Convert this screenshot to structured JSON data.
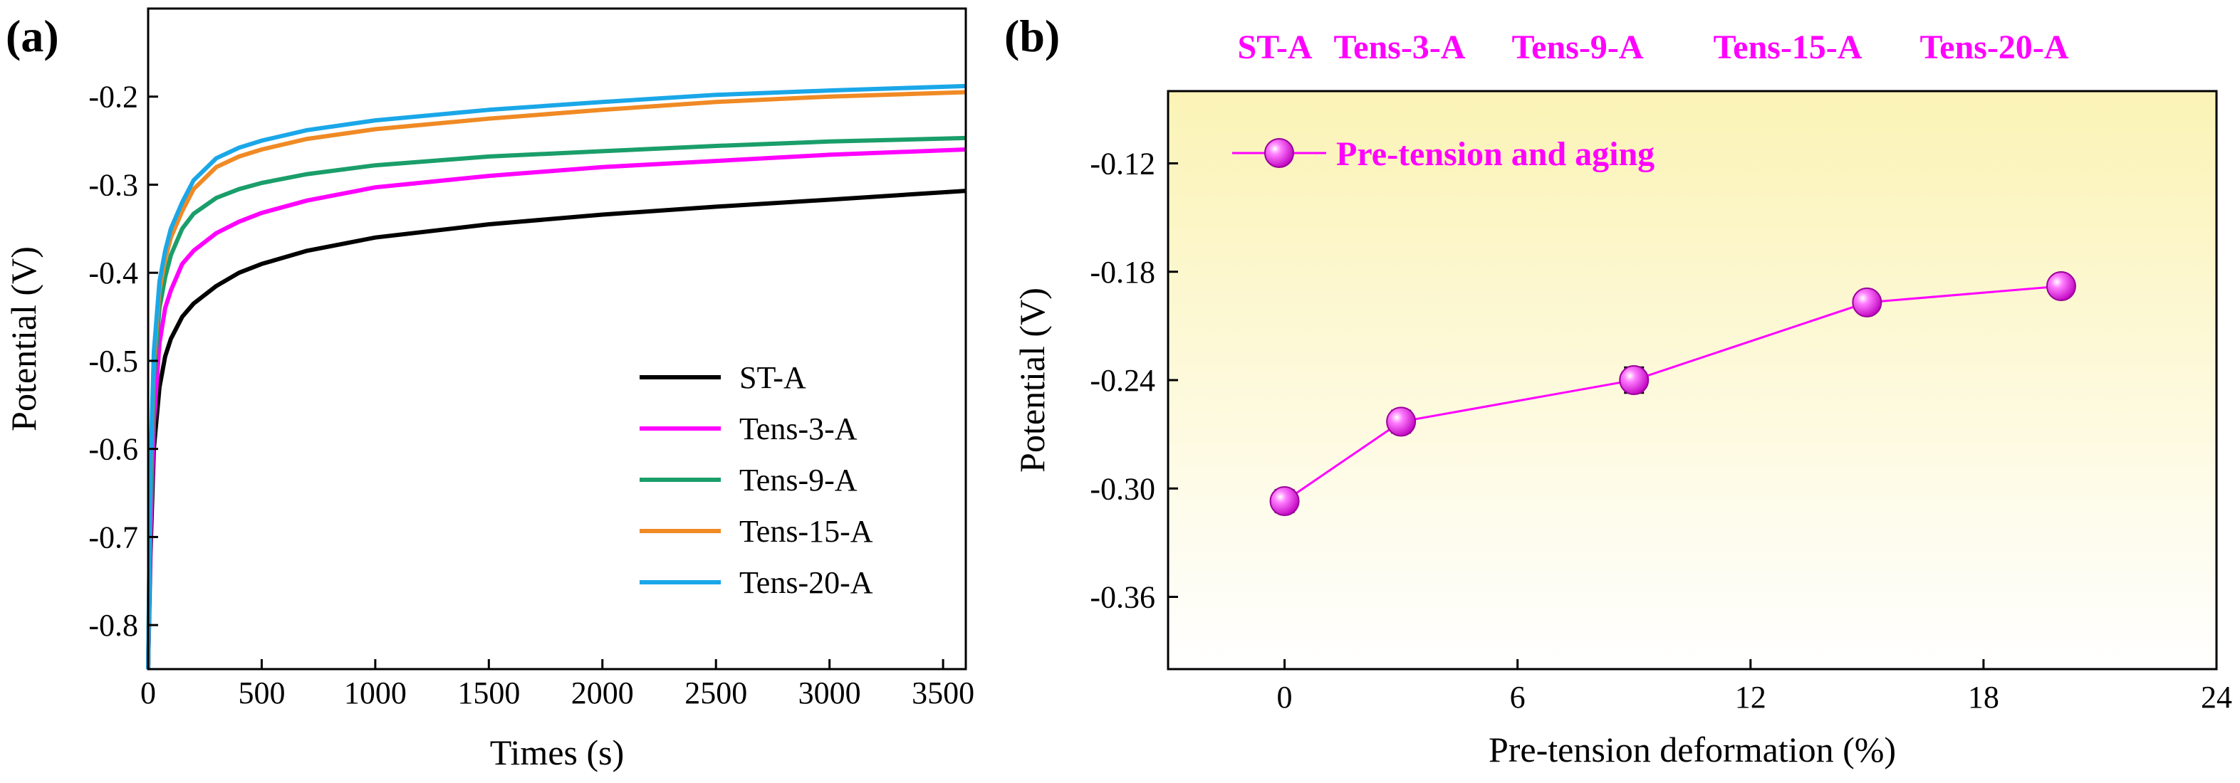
{
  "colors": {
    "st_a": "#000000",
    "tens_3_a": "#ff00ff",
    "tens_9_a": "#1a9e6a",
    "tens_15_a": "#f08a24",
    "tens_20_a": "#1aa7e8",
    "magenta": "#ff00ff",
    "gradient_top": "#fbf3b6",
    "gradient_bottom": "#ffffff"
  },
  "chart_data": [
    {
      "panel": "(a)",
      "type": "line",
      "title": "",
      "xlabel": "Times (s)",
      "ylabel": "Potential (V)",
      "xlim": [
        0,
        3600
      ],
      "ylim": [
        -0.85,
        -0.1
      ],
      "xticks": [
        0,
        500,
        1000,
        1500,
        2000,
        2500,
        3000,
        3500
      ],
      "yticks": [
        -0.8,
        -0.7,
        -0.6,
        -0.5,
        -0.4,
        -0.3,
        -0.2
      ],
      "ytick_labels": [
        "-0.8",
        "-0.7",
        "-0.6",
        "-0.5",
        "-0.4",
        "-0.3",
        "-0.2"
      ],
      "legend_position": "bottom-right",
      "series": [
        {
          "name": "ST-A",
          "color": "#000000",
          "x": [
            0,
            10,
            25,
            50,
            75,
            100,
            150,
            200,
            300,
            400,
            500,
            700,
            1000,
            1500,
            2000,
            2500,
            3000,
            3600
          ],
          "y": [
            -0.85,
            -0.72,
            -0.6,
            -0.53,
            -0.495,
            -0.475,
            -0.45,
            -0.435,
            -0.415,
            -0.4,
            -0.39,
            -0.375,
            -0.36,
            -0.345,
            -0.334,
            -0.325,
            -0.317,
            -0.307
          ]
        },
        {
          "name": "Tens-3-A",
          "color": "#ff00ff",
          "x": [
            0,
            10,
            25,
            50,
            75,
            100,
            150,
            200,
            300,
            400,
            500,
            700,
            1000,
            1500,
            2000,
            2500,
            3000,
            3600
          ],
          "y": [
            -0.85,
            -0.7,
            -0.57,
            -0.48,
            -0.44,
            -0.42,
            -0.39,
            -0.375,
            -0.355,
            -0.342,
            -0.332,
            -0.318,
            -0.303,
            -0.29,
            -0.28,
            -0.273,
            -0.266,
            -0.26
          ]
        },
        {
          "name": "Tens-9-A",
          "color": "#1a9e6a",
          "x": [
            0,
            10,
            25,
            50,
            75,
            100,
            150,
            200,
            300,
            400,
            500,
            700,
            1000,
            1500,
            2000,
            2500,
            3000,
            3600
          ],
          "y": [
            -0.85,
            -0.66,
            -0.52,
            -0.44,
            -0.405,
            -0.38,
            -0.35,
            -0.333,
            -0.315,
            -0.305,
            -0.298,
            -0.288,
            -0.278,
            -0.268,
            -0.262,
            -0.256,
            -0.251,
            -0.247
          ]
        },
        {
          "name": "Tens-15-A",
          "color": "#f08a24",
          "x": [
            0,
            10,
            25,
            50,
            75,
            100,
            150,
            200,
            300,
            400,
            500,
            700,
            1000,
            1500,
            2000,
            2500,
            3000,
            3600
          ],
          "y": [
            -0.85,
            -0.63,
            -0.5,
            -0.42,
            -0.385,
            -0.36,
            -0.33,
            -0.305,
            -0.28,
            -0.268,
            -0.26,
            -0.248,
            -0.237,
            -0.225,
            -0.215,
            -0.206,
            -0.2,
            -0.195
          ]
        },
        {
          "name": "Tens-20-A",
          "color": "#1aa7e8",
          "x": [
            0,
            10,
            25,
            50,
            75,
            100,
            150,
            200,
            300,
            400,
            500,
            700,
            1000,
            1500,
            2000,
            2500,
            3000,
            3600
          ],
          "y": [
            -0.85,
            -0.62,
            -0.49,
            -0.41,
            -0.375,
            -0.35,
            -0.32,
            -0.295,
            -0.27,
            -0.258,
            -0.25,
            -0.238,
            -0.227,
            -0.215,
            -0.206,
            -0.198,
            -0.193,
            -0.188
          ]
        }
      ]
    },
    {
      "panel": "(b)",
      "type": "line",
      "title": "",
      "xlabel": "Pre-tension deformation (%)",
      "ylabel": "Potential (V)",
      "xlim": [
        -3,
        24
      ],
      "ylim": [
        -0.4,
        -0.08
      ],
      "xticks": [
        0,
        6,
        12,
        18,
        24
      ],
      "yticks": [
        -0.36,
        -0.3,
        -0.24,
        -0.18,
        -0.12
      ],
      "ytick_labels": [
        "-0.36",
        "-0.30",
        "-0.24",
        "-0.18",
        "-0.12"
      ],
      "legend_position": "top-left",
      "series": [
        {
          "name": "Pre-tension and aging",
          "color": "#ff00ff",
          "x": [
            0,
            3,
            9,
            15,
            20
          ],
          "y": [
            -0.307,
            -0.263,
            -0.24,
            -0.197,
            -0.188
          ],
          "error": [
            0.006,
            0.006,
            0.007,
            0.004,
            0.005
          ]
        }
      ],
      "annotations": [
        {
          "text": "ST-A",
          "x": 0
        },
        {
          "text": "Tens-3-A",
          "x": 3
        },
        {
          "text": "Tens-9-A",
          "x": 9
        },
        {
          "text": "Tens-15-A",
          "x": 15
        },
        {
          "text": "Tens-20-A",
          "x": 20
        }
      ]
    }
  ]
}
